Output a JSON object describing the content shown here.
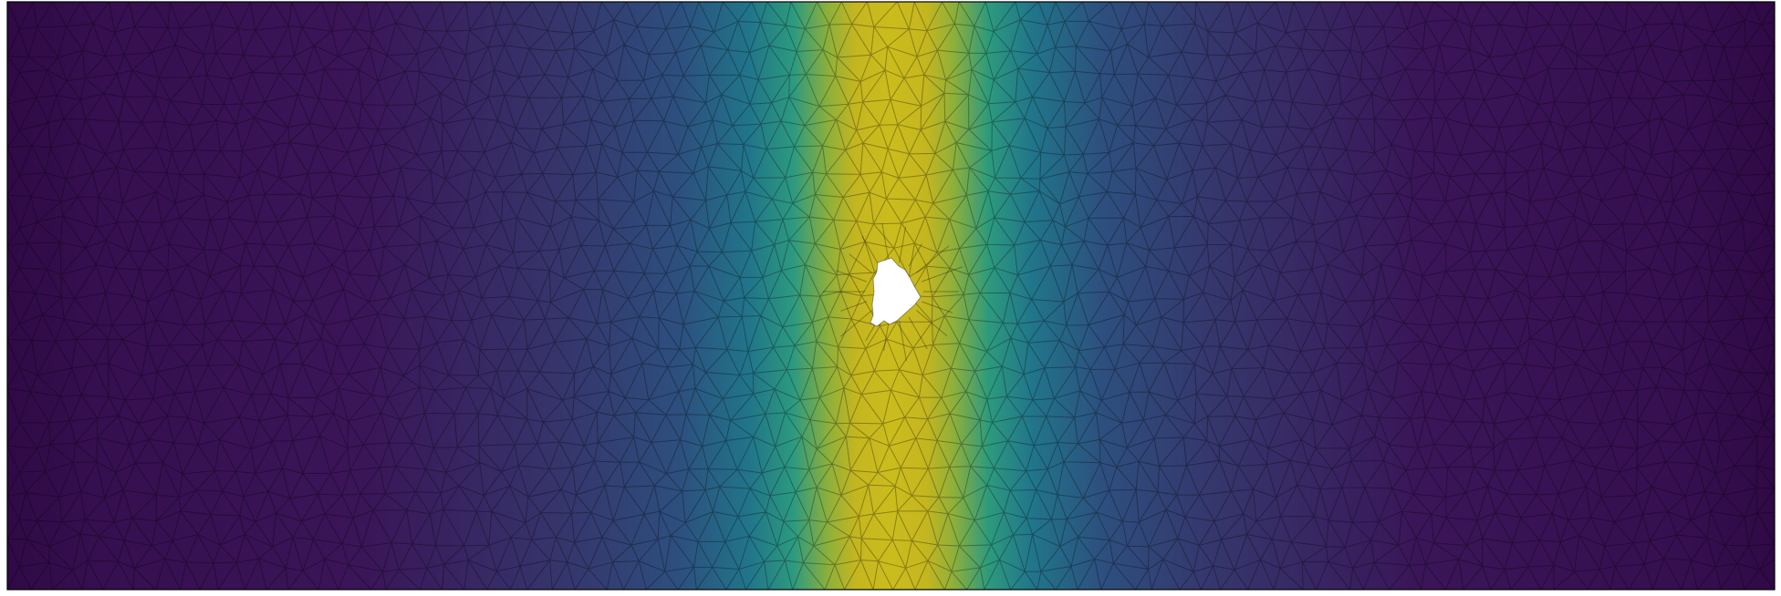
{
  "figure": {
    "colormap": [
      "#440154",
      "#3b528b",
      "#21918c",
      "#5ec962",
      "#fde725"
    ],
    "field_dark": "#2f0a45",
    "field_mid": "#2e6f8e",
    "field_peak": "#d0c21b",
    "mesh_color": "#000000",
    "border_color": "#000000",
    "hole_color": "#ffffff"
  }
}
